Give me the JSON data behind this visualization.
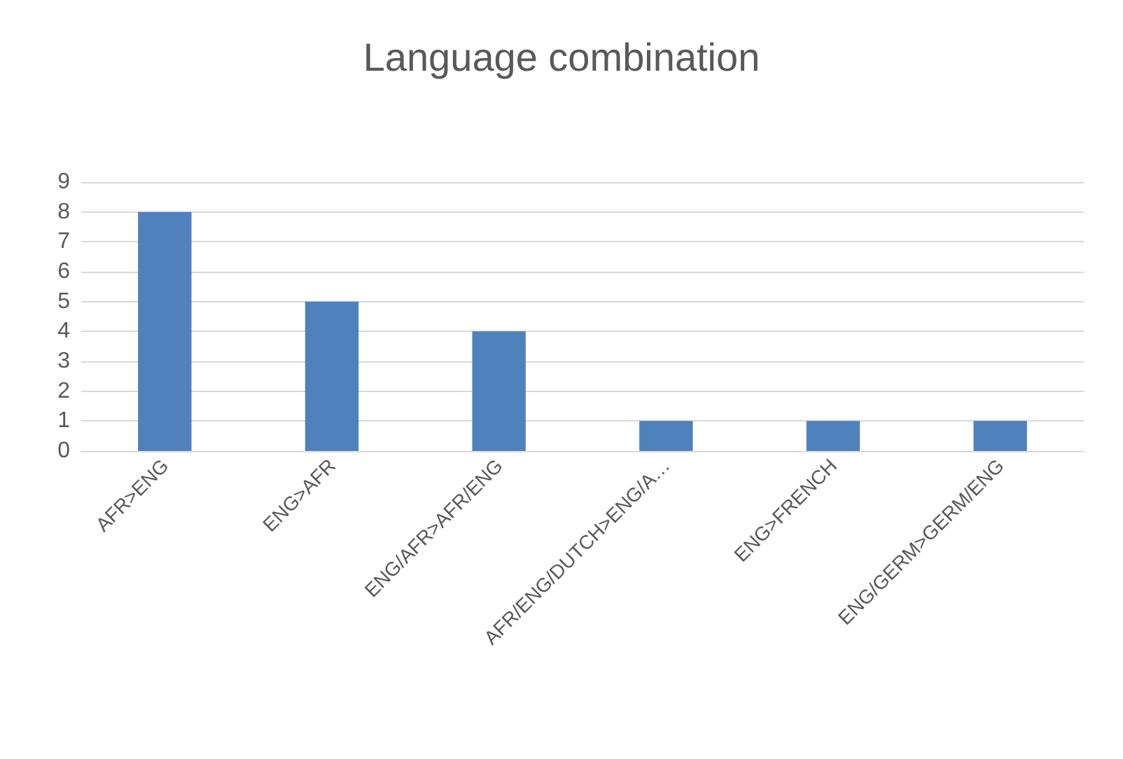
{
  "chart_data": {
    "type": "bar",
    "title": "Language combination",
    "categories": [
      "AFR>ENG",
      "ENG>AFR",
      "ENG/AFR>AFR/ENG",
      "AFR/ENG/DUTCH>ENG/A…",
      "ENG>FRENCH",
      "ENG/GERM>GERM/ENG"
    ],
    "values": [
      8,
      5,
      4,
      1,
      1,
      1
    ],
    "color": "#4f81bd",
    "ylim": [
      0,
      9
    ],
    "yticks": [
      0,
      1,
      2,
      3,
      4,
      5,
      6,
      7,
      8,
      9
    ],
    "grid": "y"
  }
}
